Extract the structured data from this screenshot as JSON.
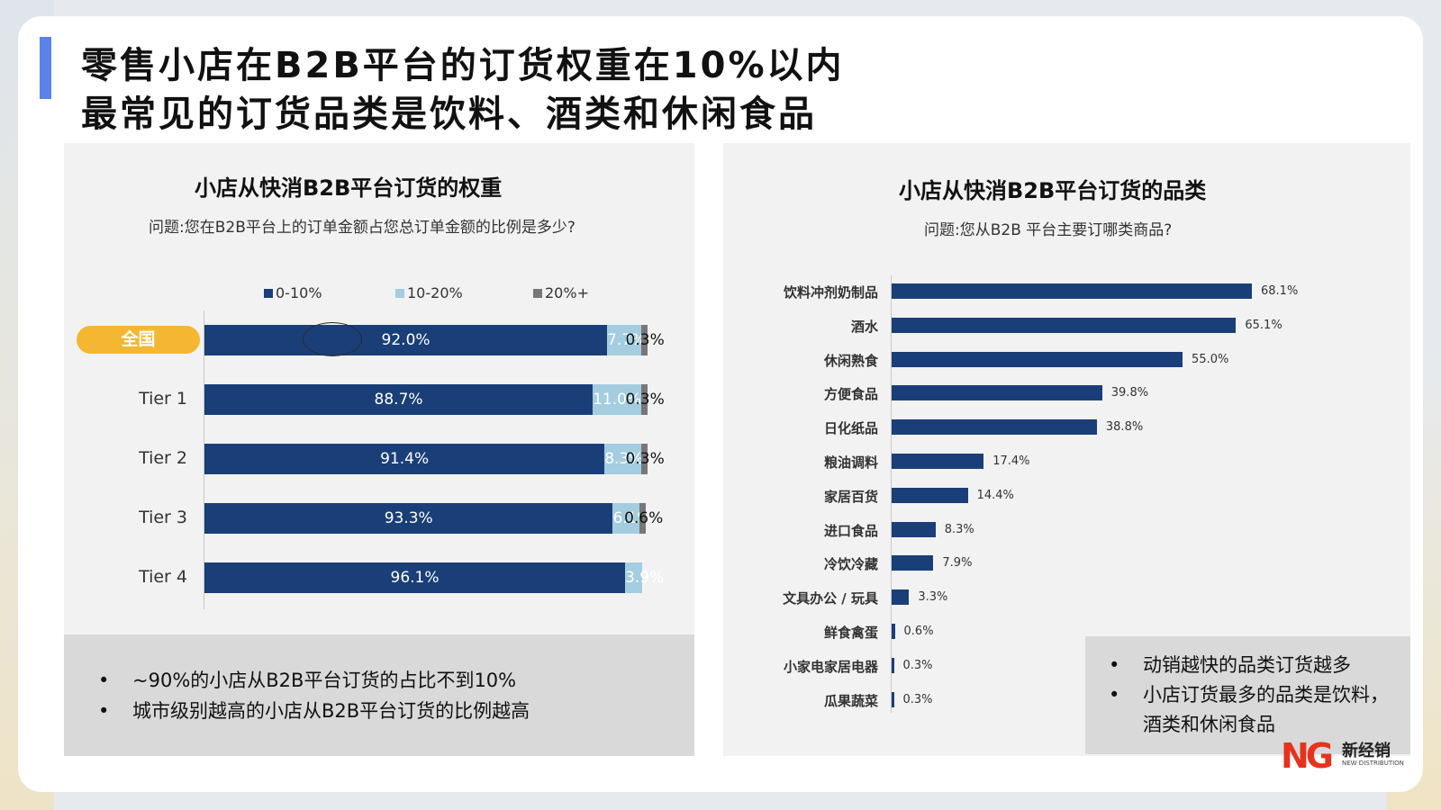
{
  "headline": {
    "line1": "零售小店在B2B平台的订货权重在10%以内",
    "line2": "最常见的订货品类是饮料、酒类和休闲食品"
  },
  "colors": {
    "accent": "#5b82ea",
    "dark_bar": "#1a3f78",
    "light_bar": "#a4cde0",
    "grey_bar": "#777777",
    "pill": "#f5b731",
    "logo_red": "#e8321e"
  },
  "chart_data": [
    {
      "type": "bar",
      "orientation": "horizontal",
      "stacked": true,
      "title": "小店从快消B2B平台订货的权重",
      "subtitle": "问题:您在B2B平台上的订单金额占您总订单金额的比例是多少?",
      "legend_position": "top",
      "categories": [
        "全国",
        "Tier 1",
        "Tier 2",
        "Tier 3",
        "Tier 4"
      ],
      "highlight_category": "全国",
      "series": [
        {
          "name": "0-10%",
          "color": "#1a3f78",
          "values": [
            92.0,
            88.7,
            91.4,
            93.3,
            96.1
          ],
          "labels": [
            "92.0%",
            "88.7%",
            "91.4%",
            "93.3%",
            "96.1%"
          ]
        },
        {
          "name": "10-20%",
          "color": "#a4cde0",
          "values": [
            7.7,
            11.0,
            8.3,
            6.1,
            3.9
          ],
          "labels": [
            "7.7%",
            "11.0%",
            "8.3%",
            "6.1%",
            "3.9%"
          ]
        },
        {
          "name": "20%+",
          "color": "#777777",
          "values": [
            0.3,
            0.3,
            0.3,
            0.6,
            0
          ],
          "labels": [
            "0.3%",
            "0.3%",
            "0.3%",
            "0.6%",
            ""
          ]
        }
      ],
      "xlim": [
        0,
        100
      ]
    },
    {
      "type": "bar",
      "orientation": "horizontal",
      "title": "小店从快消B2B平台订货的品类",
      "subtitle": "问题:您从B2B 平台主要订哪类商品?",
      "categories": [
        "饮料冲剂奶制品",
        "酒水",
        "休闲熟食",
        "方便食品",
        "日化纸品",
        "粮油调料",
        "家居百货",
        "进口食品",
        "冷饮冷藏",
        "文具办公 / 玩具",
        "鲜食禽蛋",
        "小家电家居电器",
        "瓜果蔬菜"
      ],
      "values": [
        68.1,
        65.1,
        55.0,
        39.8,
        38.8,
        17.4,
        14.4,
        8.3,
        7.9,
        3.3,
        0.6,
        0.3,
        0.3
      ],
      "labels": [
        "68.1%",
        "65.1%",
        "55.0%",
        "39.8%",
        "38.8%",
        "17.4%",
        "14.4%",
        "8.3%",
        "7.9%",
        "3.3%",
        "0.6%",
        "0.3%",
        "0.3%"
      ],
      "xlim": [
        0,
        100
      ]
    }
  ],
  "notes_left": [
    "~90%的小店从B2B平台订货的占比不到10%",
    "城市级别越高的小店从B2B平台订货的比例越高"
  ],
  "notes_right": [
    "动销越快的品类订货越多",
    "小店订货最多的品类是饮料，酒类和休闲食品"
  ],
  "logo": {
    "mark": "NG",
    "cn": "新经销",
    "en": "NEW DISTRIBUTION"
  }
}
